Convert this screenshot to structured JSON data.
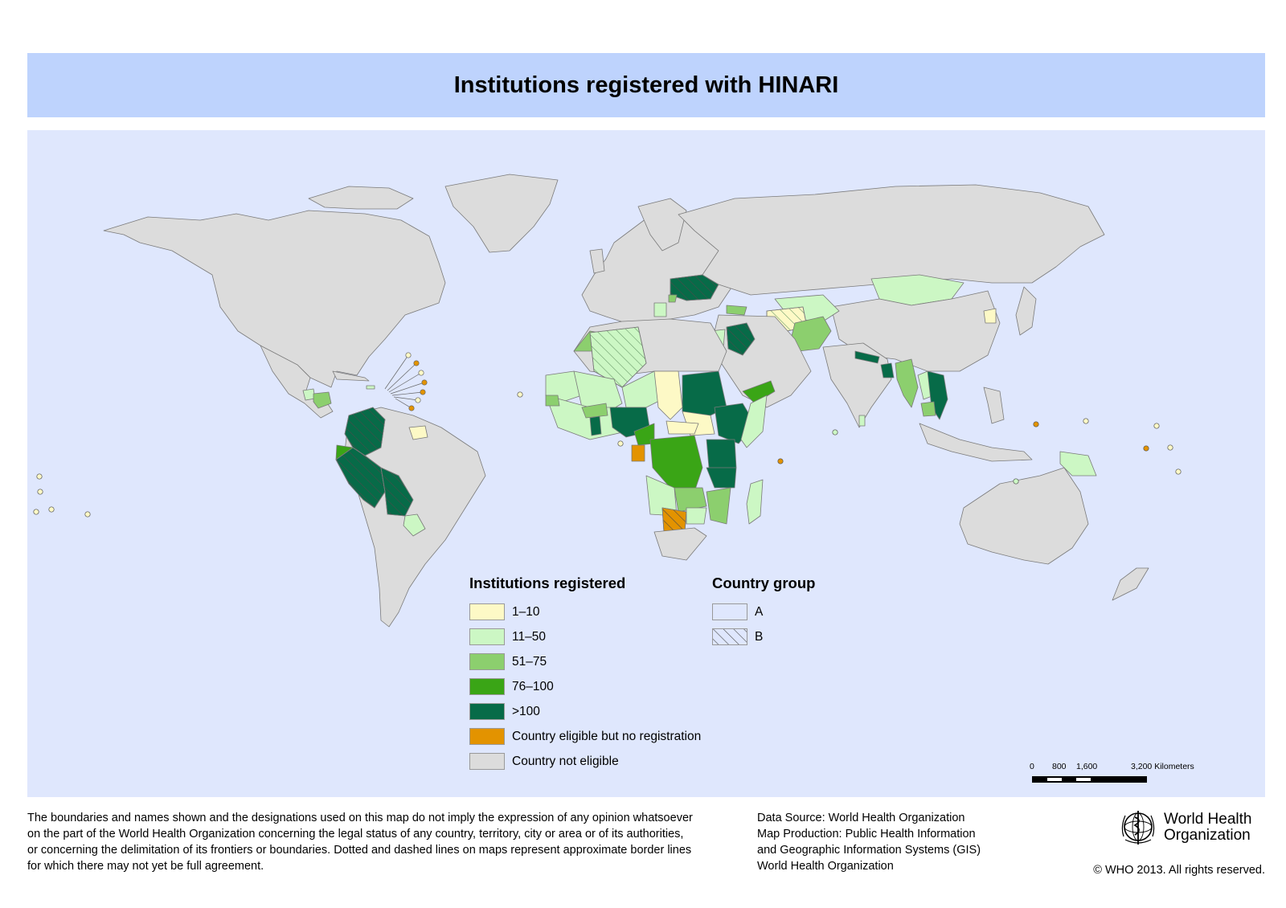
{
  "title": "Institutions registered with HINARI",
  "colors": {
    "ocean": "#dfe7fd",
    "title_band": "#bed3fd",
    "not_eligible": "#dcdcdc",
    "c1_10": "#fdf9c6",
    "c11_50": "#ccf7c4",
    "c51_75": "#8ccf6e",
    "c76_100": "#3aa516",
    "cgt100": "#076b48",
    "eligible_no_reg": "#e39300",
    "border": "#7a7a7a"
  },
  "legend": {
    "title": "Institutions registered",
    "items": [
      {
        "label": "1–10",
        "color": "#fdf9c6"
      },
      {
        "label": "11–50",
        "color": "#ccf7c4"
      },
      {
        "label": "51–75",
        "color": "#8ccf6e"
      },
      {
        "label": "76–100",
        "color": "#3aa516"
      },
      {
        "label": ">100",
        "color": "#076b48"
      },
      {
        "label": "Country eligible but no registration",
        "color": "#e39300"
      },
      {
        "label": "Country not eligible",
        "color": "#dcdcdc"
      }
    ]
  },
  "group_legend": {
    "title": "Country group",
    "items": [
      {
        "label": "A",
        "pattern": "solid"
      },
      {
        "label": "B",
        "pattern": "hatch"
      }
    ]
  },
  "scale": {
    "labels": [
      "0",
      "800",
      "1,600",
      "3,200 Kilometers"
    ]
  },
  "disclaimer": [
    "The boundaries and names shown and the designations used on this map do not imply the expression of any opinion whatsoever",
    "on the part of the World Health Organization concerning the legal status of any country, territory, city or area or of its authorities,",
    "or concerning the delimitation of its frontiers or boundaries. Dotted and dashed lines on maps represent approximate border lines",
    "for which there may not yet be full agreement."
  ],
  "source": [
    "Data Source: World Health Organization",
    "Map Production: Public Health Information",
    "and Geographic Information Systems (GIS)",
    "World Health Organization"
  ],
  "logo": {
    "line1": "World Health",
    "line2": "Organization",
    "emblem": "who-emblem-icon"
  },
  "copyright": "© WHO 2013. All rights reserved."
}
